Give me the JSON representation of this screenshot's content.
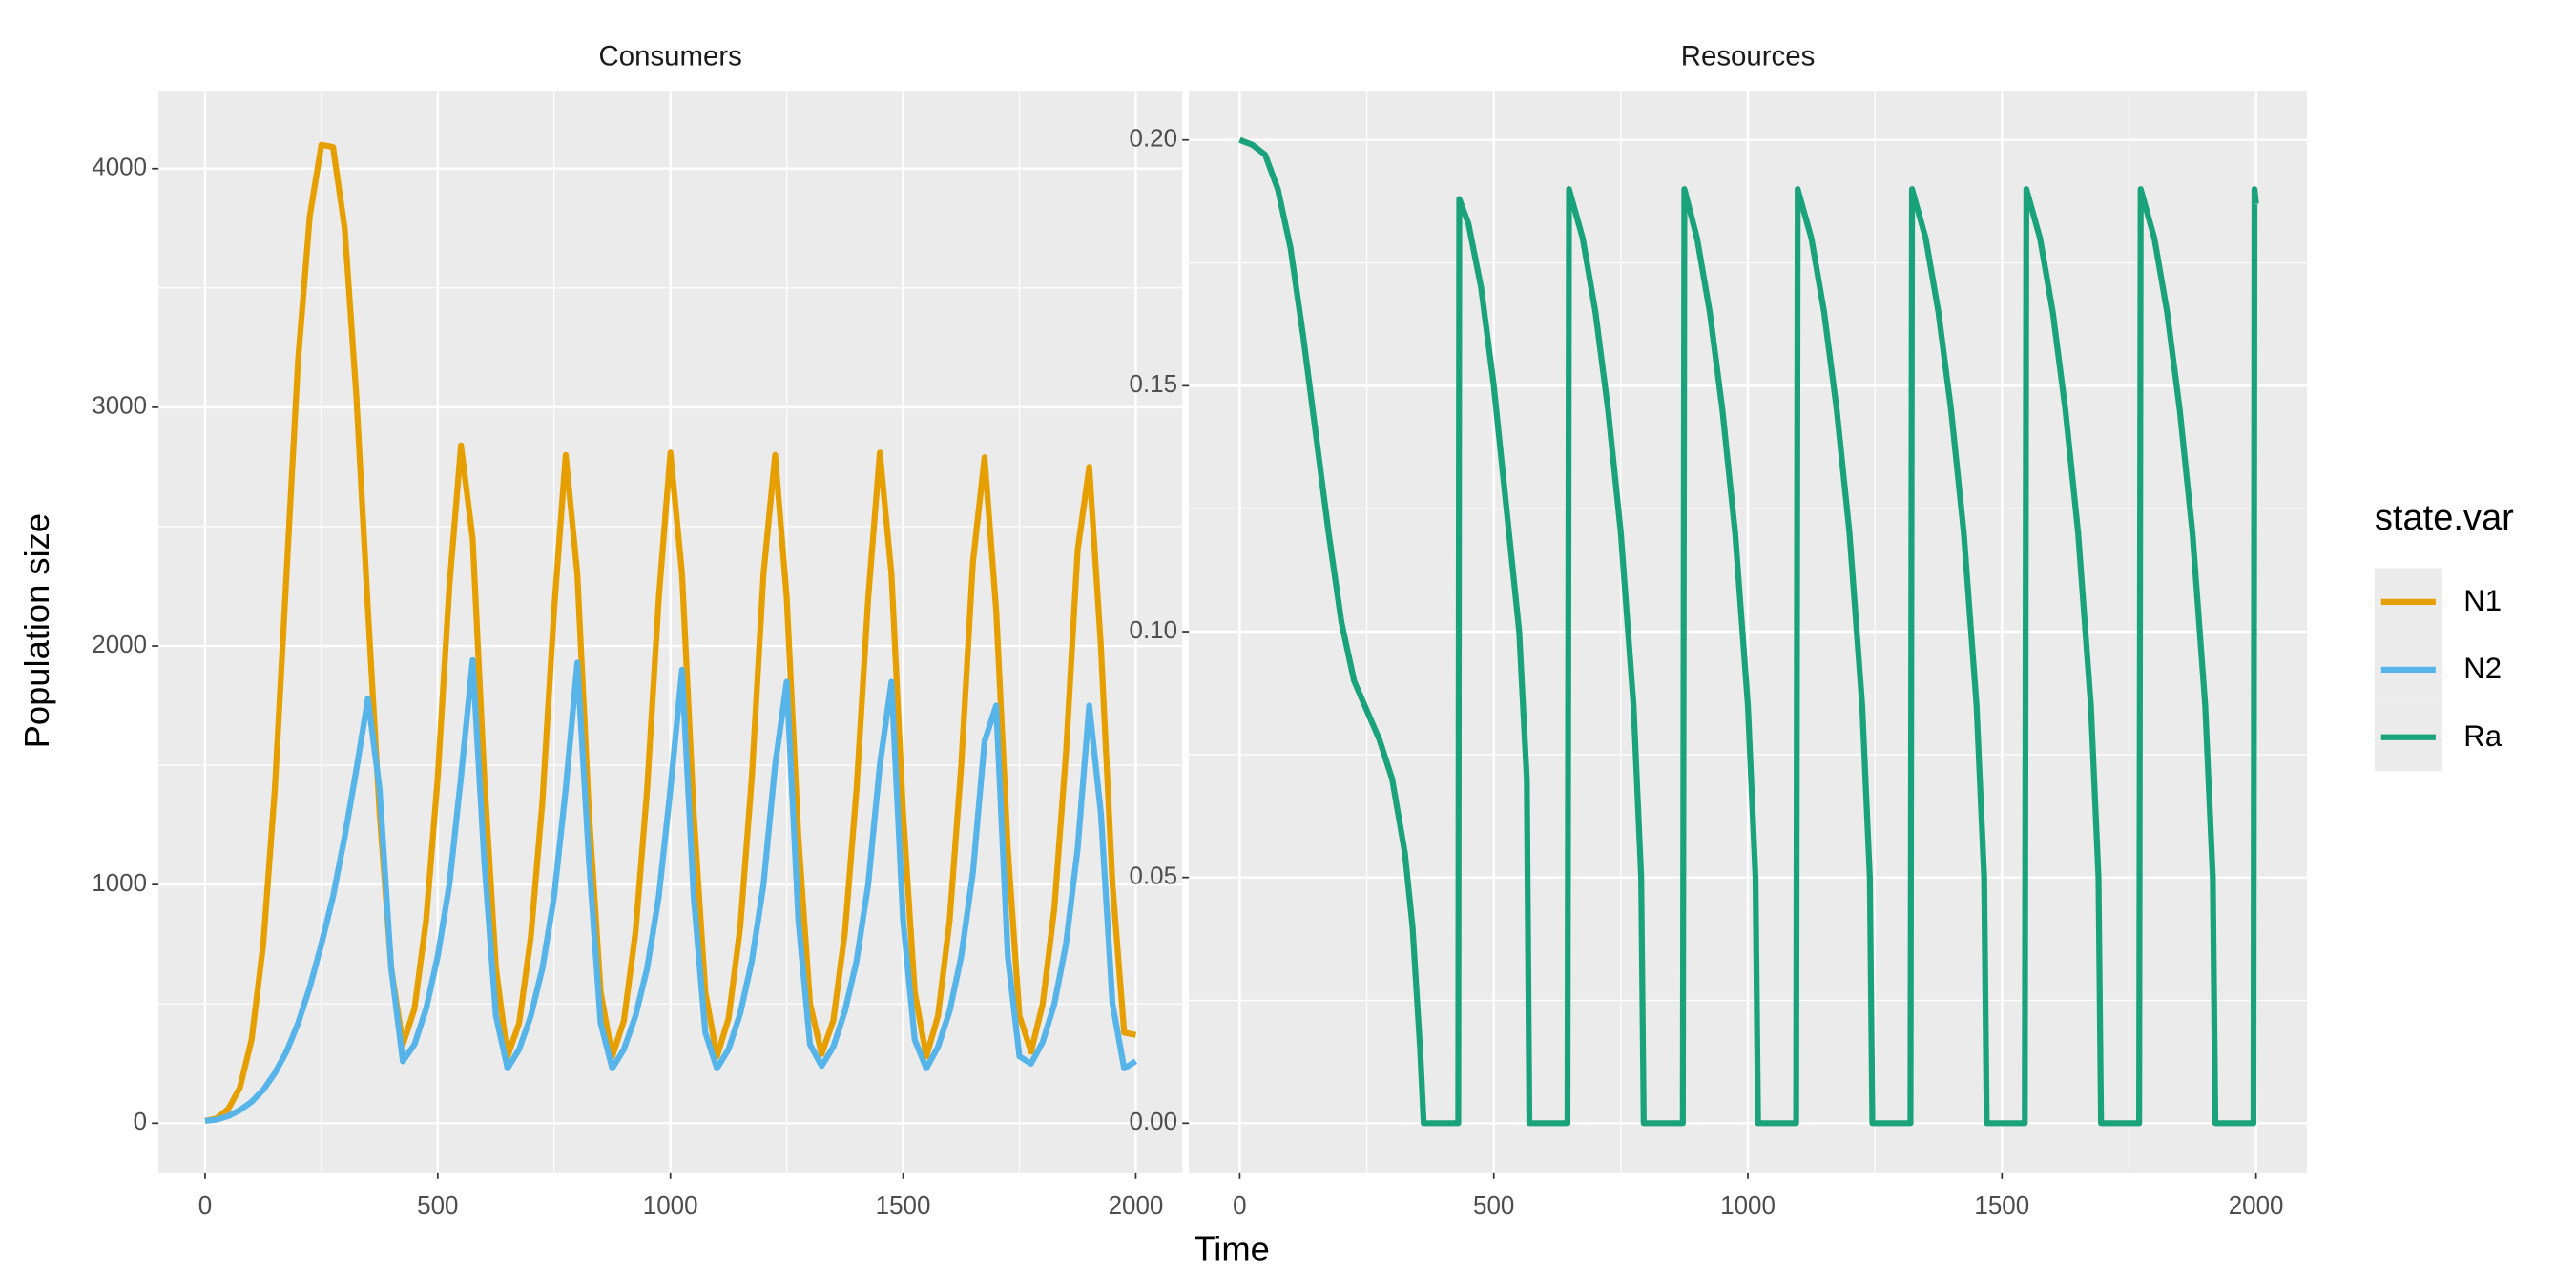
{
  "chart_data": [
    {
      "type": "line",
      "title": "Consumers",
      "xlabel": "Time",
      "ylabel": "Population size",
      "legend_title": "state.var",
      "legend": "right",
      "grid": true,
      "x": [
        0,
        25,
        50,
        75,
        100,
        125,
        150,
        175,
        200,
        225,
        250,
        275,
        300,
        325,
        350,
        375,
        400,
        425,
        450,
        475,
        500,
        525,
        550,
        575,
        600,
        625,
        650,
        675,
        700,
        725,
        750,
        775,
        800,
        825,
        850,
        875,
        900,
        925,
        950,
        975,
        1000,
        1025,
        1050,
        1075,
        1100,
        1125,
        1150,
        1175,
        1200,
        1225,
        1250,
        1275,
        1300,
        1325,
        1350,
        1375,
        1400,
        1425,
        1450,
        1475,
        1500,
        1525,
        1550,
        1575,
        1600,
        1625,
        1650,
        1675,
        1700,
        1725,
        1750,
        1775,
        1800,
        1825,
        1850,
        1875,
        1900,
        1925,
        1950,
        1975,
        2000
      ],
      "xlim": [
        -100,
        2100
      ],
      "xticks": [
        0,
        500,
        1000,
        1500,
        2000
      ],
      "ylim": [
        -206,
        4326
      ],
      "yticks": [
        0,
        1000,
        2000,
        3000,
        4000
      ],
      "series": [
        {
          "name": "N1",
          "color": "#E69F00",
          "values": [
            10,
            20,
            60,
            150,
            350,
            750,
            1400,
            2300,
            3200,
            3800,
            4100,
            4090,
            3750,
            3050,
            2150,
            1300,
            650,
            330,
            480,
            850,
            1450,
            2250,
            2840,
            2450,
            1450,
            650,
            280,
            420,
            780,
            1350,
            2150,
            2800,
            2300,
            1300,
            550,
            280,
            430,
            800,
            1400,
            2200,
            2810,
            2300,
            1300,
            550,
            280,
            440,
            820,
            1450,
            2300,
            2800,
            2200,
            1200,
            500,
            290,
            430,
            800,
            1400,
            2200,
            2810,
            2300,
            1300,
            550,
            280,
            450,
            850,
            1500,
            2350,
            2790,
            2150,
            1150,
            450,
            300,
            500,
            900,
            1550,
            2400,
            2750,
            2000,
            1000,
            380,
            370
          ]
        },
        {
          "name": "N2",
          "color": "#56B4E9",
          "values": [
            10,
            15,
            30,
            55,
            90,
            140,
            210,
            300,
            420,
            570,
            750,
            950,
            1200,
            1480,
            1780,
            1400,
            650,
            260,
            330,
            480,
            700,
            1000,
            1450,
            1940,
            1100,
            450,
            230,
            310,
            450,
            650,
            950,
            1400,
            1930,
            1100,
            420,
            230,
            310,
            450,
            650,
            950,
            1400,
            1900,
            950,
            380,
            230,
            310,
            460,
            680,
            1000,
            1500,
            1850,
            850,
            330,
            240,
            320,
            470,
            680,
            1000,
            1500,
            1850,
            850,
            350,
            230,
            320,
            470,
            700,
            1050,
            1600,
            1750,
            700,
            280,
            250,
            340,
            500,
            750,
            1150,
            1750,
            1300,
            500,
            230,
            260
          ]
        }
      ]
    },
    {
      "type": "line",
      "title": "Resources",
      "grid": true,
      "x": [
        0,
        25,
        50,
        75,
        100,
        125,
        150,
        175,
        200,
        225,
        250,
        275,
        300,
        325,
        340,
        355,
        362,
        430,
        432,
        450,
        475,
        500,
        525,
        550,
        565,
        570,
        645,
        648,
        675,
        700,
        725,
        750,
        775,
        790,
        795,
        872,
        875,
        900,
        925,
        950,
        975,
        1000,
        1015,
        1020,
        1095,
        1098,
        1125,
        1150,
        1175,
        1200,
        1225,
        1240,
        1245,
        1320,
        1323,
        1350,
        1375,
        1400,
        1425,
        1450,
        1465,
        1470,
        1545,
        1548,
        1575,
        1600,
        1625,
        1650,
        1675,
        1690,
        1695,
        1770,
        1773,
        1800,
        1825,
        1850,
        1875,
        1900,
        1915,
        1920,
        1995,
        1997,
        2000
      ],
      "xlim": [
        -100,
        2100
      ],
      "xticks": [
        0,
        500,
        1000,
        1500,
        2000
      ],
      "ylim": [
        -0.01,
        0.21
      ],
      "yticks": [
        {
          "value": 0,
          "label": "0.00"
        },
        0.05,
        {
          "value": 0.1,
          "label": "0.10"
        },
        0.15,
        {
          "value": 0.2,
          "label": "0.20"
        }
      ],
      "series": [
        {
          "name": "Ra",
          "color": "#1AA37A",
          "values": [
            0.2,
            0.199,
            0.197,
            0.19,
            0.178,
            0.16,
            0.14,
            0.12,
            0.102,
            0.09,
            0.084,
            0.078,
            0.07,
            0.055,
            0.04,
            0.015,
            0,
            0,
            0.188,
            0.183,
            0.17,
            0.15,
            0.125,
            0.1,
            0.07,
            0,
            0,
            0.19,
            0.18,
            0.165,
            0.145,
            0.12,
            0.085,
            0.05,
            0,
            0,
            0.19,
            0.18,
            0.165,
            0.145,
            0.12,
            0.085,
            0.05,
            0,
            0,
            0.19,
            0.18,
            0.165,
            0.145,
            0.12,
            0.085,
            0.05,
            0,
            0,
            0.19,
            0.18,
            0.165,
            0.145,
            0.12,
            0.085,
            0.05,
            0,
            0,
            0.19,
            0.18,
            0.165,
            0.145,
            0.12,
            0.085,
            0.05,
            0,
            0,
            0.19,
            0.18,
            0.165,
            0.145,
            0.12,
            0.085,
            0.05,
            0,
            0,
            0.19,
            0.187
          ]
        }
      ]
    }
  ]
}
